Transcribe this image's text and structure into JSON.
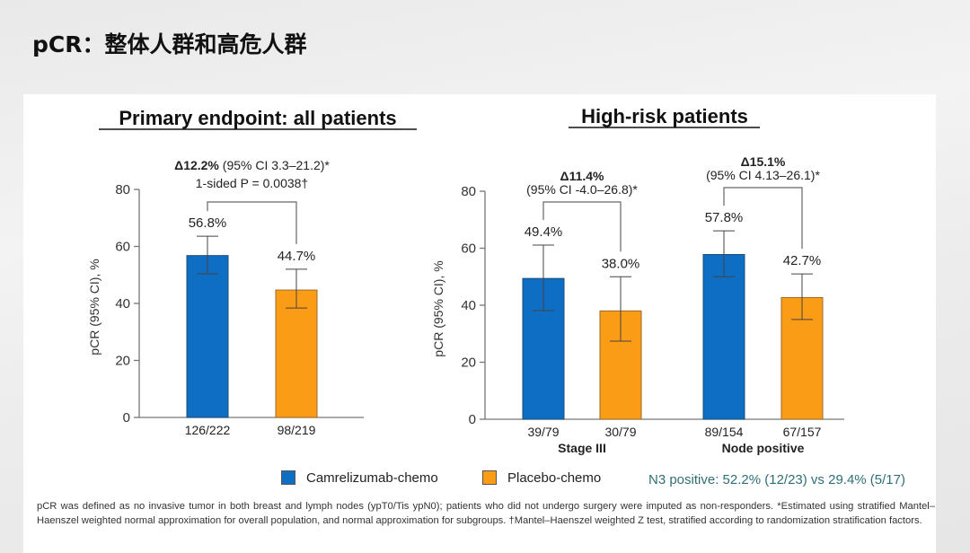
{
  "slide": {
    "title": "pCR：整体人群和高危人群"
  },
  "legend": [
    {
      "label": "Camrelizumab-chemo",
      "color": "#0d6ec3"
    },
    {
      "label": "Placebo-chemo",
      "color": "#fb9c17"
    }
  ],
  "n3_note": "N3 positive: 52.2% (12/23) vs 29.4% (5/17)",
  "footnote": "pCR was defined as no invasive tumor in both breast and lymph nodes (ypT0/Tis ypN0); patients who did not undergo surgery were imputed as non-responders. *Estimated using stratified Mantel–Haenszel weighted normal approximation for overall population, and normal approximation for subgroups. †Mantel–Haenszel weighted Z test, stratified according to randomization stratification factors.",
  "chart_data": [
    {
      "type": "bar",
      "title": "Primary endpoint: all patients",
      "ylabel": "pCR (95% CI), %",
      "ylim": [
        0,
        80
      ],
      "yticks": [
        0,
        20,
        40,
        60,
        80
      ],
      "groups": [
        {
          "label": "",
          "delta": {
            "bold": "Δ12.2%",
            "rest": " (95% CI 3.3–21.2)*",
            "line2": "1-sided P = 0.0038†"
          },
          "bars": [
            {
              "series": "Camrelizumab-chemo",
              "value": 56.8,
              "label": "56.8%",
              "n": "126/222",
              "ci": [
                50.4,
                63.6
              ]
            },
            {
              "series": "Placebo-chemo",
              "value": 44.7,
              "label": "44.7%",
              "n": "98/219",
              "ci": [
                38.4,
                52.0
              ]
            }
          ]
        }
      ]
    },
    {
      "type": "bar",
      "title": "High-risk patients",
      "ylabel": "pCR (95% CI), %",
      "ylim": [
        0,
        80
      ],
      "yticks": [
        0,
        20,
        40,
        60,
        80
      ],
      "groups": [
        {
          "label": "Stage III",
          "delta": {
            "bold": "Δ11.4%",
            "rest": "",
            "line2": "(95% CI -4.0–26.8)*"
          },
          "bars": [
            {
              "series": "Camrelizumab-chemo",
              "value": 49.4,
              "label": "49.4%",
              "n": "39/79",
              "ci": [
                38.1,
                61.1
              ]
            },
            {
              "series": "Placebo-chemo",
              "value": 38.0,
              "label": "38.0%",
              "n": "30/79",
              "ci": [
                27.4,
                50.0
              ]
            }
          ]
        },
        {
          "label": "Node positive",
          "delta": {
            "bold": "Δ15.1%",
            "rest": "",
            "line2": "(95% CI 4.13–26.1)*"
          },
          "bars": [
            {
              "series": "Camrelizumab-chemo",
              "value": 57.8,
              "label": "57.8%",
              "n": "89/154",
              "ci": [
                50.0,
                66.1
              ]
            },
            {
              "series": "Placebo-chemo",
              "value": 42.7,
              "label": "42.7%",
              "n": "67/157",
              "ci": [
                35.0,
                51.0
              ]
            }
          ]
        }
      ]
    }
  ]
}
